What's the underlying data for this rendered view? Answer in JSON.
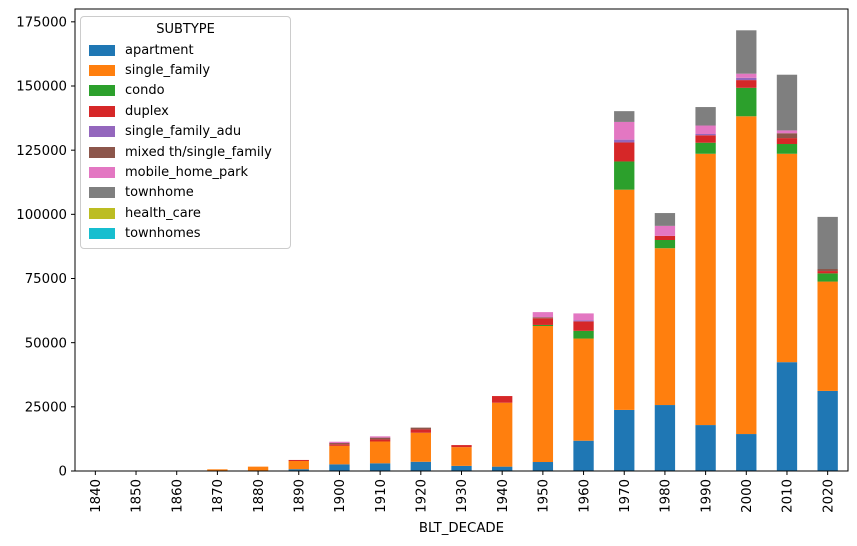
{
  "figure": {
    "background": "#ffffff",
    "axis_color": "#000000"
  },
  "chart_data": {
    "type": "bar",
    "stacked": true,
    "title": "",
    "xlabel": "BLT_DECADE",
    "ylabel": "",
    "grid": false,
    "legend_title": "SUBTYPE",
    "legend_position": "upper left",
    "ylim": [
      0,
      180000
    ],
    "y_ticks": [
      0,
      25000,
      50000,
      75000,
      100000,
      125000,
      150000,
      175000
    ],
    "y_tick_labels": [
      "0",
      "25000",
      "50000",
      "75000",
      "100000",
      "125000",
      "150000",
      "175000"
    ],
    "categories": [
      "1840",
      "1850",
      "1860",
      "1870",
      "1880",
      "1890",
      "1900",
      "1910",
      "1920",
      "1930",
      "1940",
      "1950",
      "1960",
      "1970",
      "1980",
      "1990",
      "2000",
      "2010",
      "2020"
    ],
    "series": [
      {
        "name": "apartment",
        "color": "#1f77b4",
        "values": [
          0,
          0,
          0,
          50,
          100,
          700,
          2600,
          3000,
          3600,
          2000,
          1700,
          3500,
          11800,
          23800,
          25700,
          17900,
          14400,
          42400,
          31200
        ]
      },
      {
        "name": "single_family",
        "color": "#ff7f0e",
        "values": [
          40,
          60,
          100,
          600,
          1600,
          3200,
          7200,
          8500,
          11300,
          7300,
          24900,
          53000,
          39800,
          85800,
          61100,
          105700,
          123800,
          81200,
          42600
        ]
      },
      {
        "name": "condo",
        "color": "#2ca02c",
        "values": [
          0,
          0,
          0,
          0,
          0,
          0,
          0,
          0,
          0,
          0,
          0,
          400,
          3000,
          11000,
          3200,
          4300,
          11100,
          3800,
          3200
        ]
      },
      {
        "name": "duplex",
        "color": "#d62728",
        "values": [
          0,
          0,
          0,
          0,
          0,
          400,
          600,
          800,
          1300,
          800,
          2600,
          2600,
          3700,
          7400,
          1600,
          2900,
          3000,
          2300,
          900
        ]
      },
      {
        "name": "single_family_adu",
        "color": "#9467bd",
        "values": [
          0,
          0,
          0,
          0,
          0,
          0,
          0,
          0,
          0,
          0,
          0,
          0,
          400,
          1100,
          0,
          500,
          900,
          0,
          0
        ]
      },
      {
        "name": "mixed th/single_family",
        "color": "#8c564b",
        "values": [
          0,
          0,
          0,
          0,
          0,
          0,
          500,
          700,
          700,
          0,
          0,
          400,
          0,
          0,
          0,
          0,
          0,
          1900,
          800
        ]
      },
      {
        "name": "mobile_home_park",
        "color": "#e377c2",
        "values": [
          0,
          0,
          0,
          0,
          0,
          0,
          500,
          500,
          0,
          0,
          0,
          2000,
          2700,
          6900,
          3900,
          3300,
          1600,
          1100,
          0
        ]
      },
      {
        "name": "townhome",
        "color": "#7f7f7f",
        "values": [
          0,
          0,
          0,
          0,
          0,
          0,
          0,
          0,
          0,
          0,
          0,
          0,
          0,
          4200,
          5000,
          7200,
          16900,
          21700,
          20300
        ]
      },
      {
        "name": "health_care",
        "color": "#bcbd22",
        "values": [
          0,
          0,
          0,
          0,
          0,
          0,
          0,
          0,
          0,
          0,
          0,
          0,
          0,
          0,
          0,
          0,
          0,
          0,
          0
        ]
      },
      {
        "name": "townhomes",
        "color": "#17becf",
        "values": [
          0,
          0,
          0,
          0,
          0,
          0,
          0,
          0,
          0,
          0,
          0,
          0,
          0,
          0,
          0,
          0,
          0,
          0,
          0
        ]
      }
    ]
  }
}
